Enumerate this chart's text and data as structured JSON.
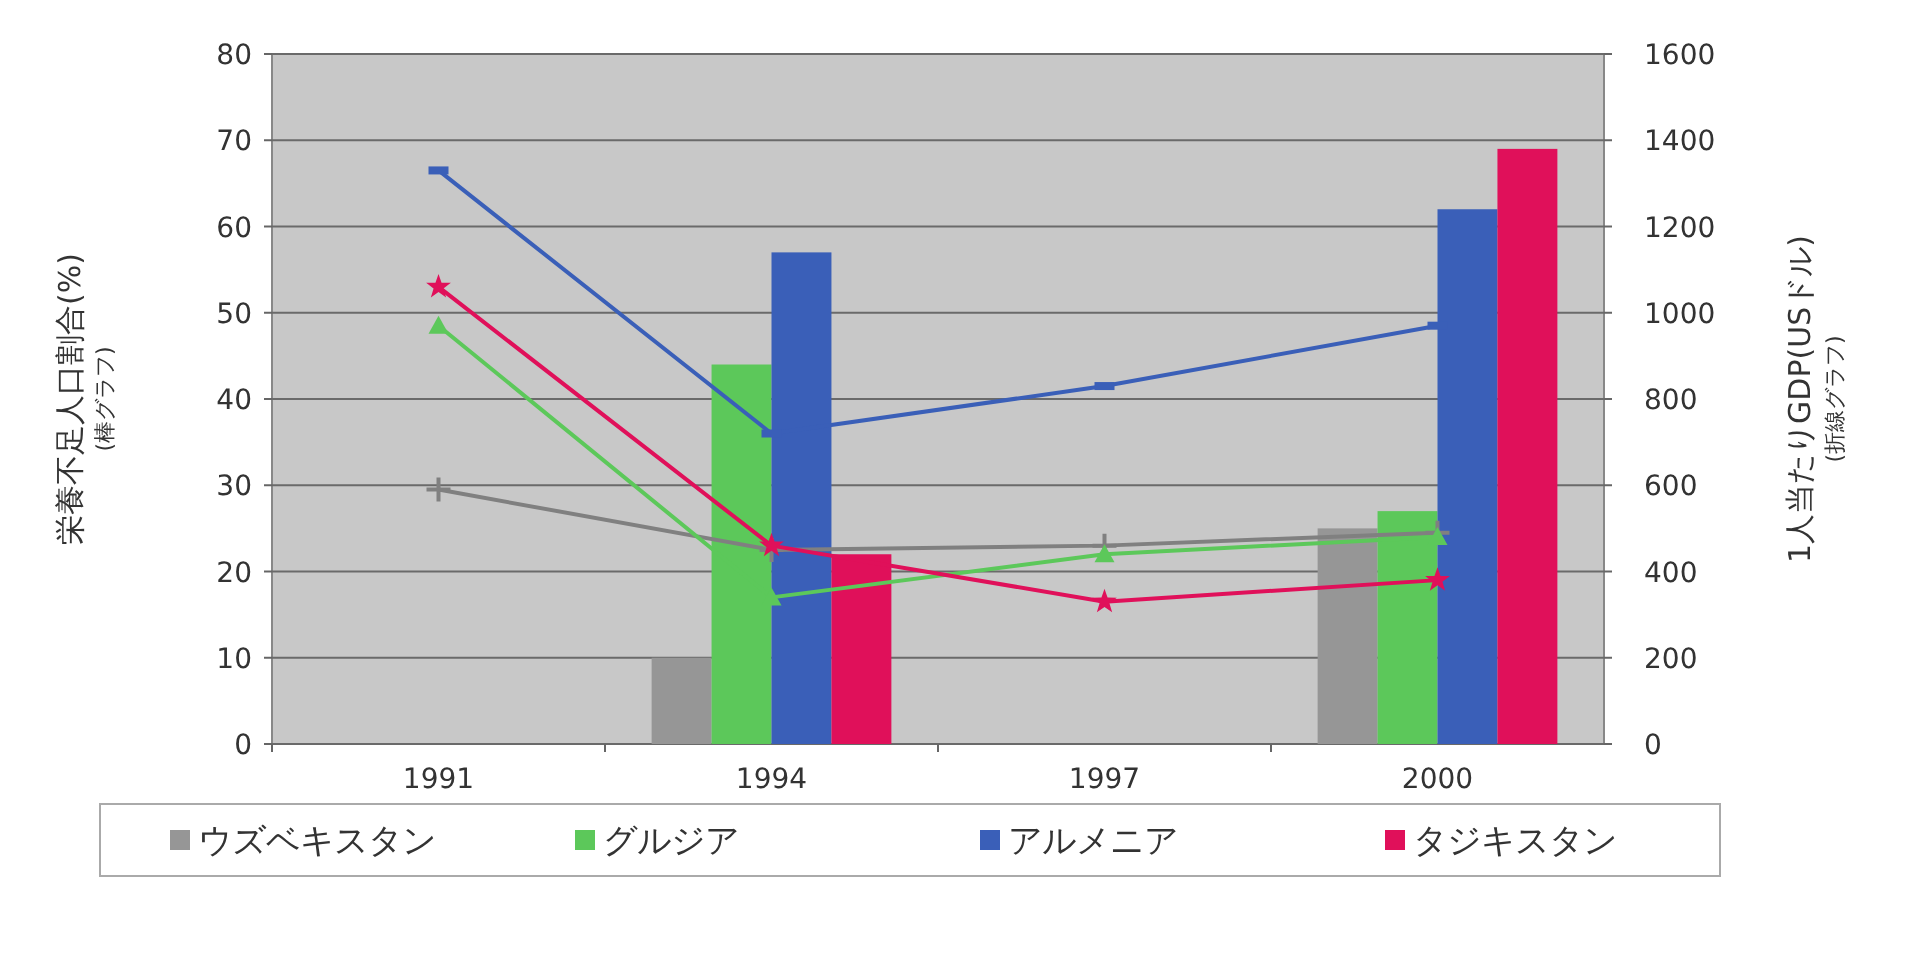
{
  "chart_data": {
    "type": "bar",
    "categories": [
      "1991",
      "1994",
      "1997",
      "2000"
    ],
    "ylabel": "栄養不足人口割合(%)$_{(棒グラフ)}$",
    "y2label": "1人当たりGDP(USドル)$_{(折線グラフ)}$",
    "ylim": [
      0,
      80
    ],
    "yticks": [
      0,
      10,
      20,
      30,
      40,
      50,
      60,
      70,
      80
    ],
    "y2lim": [
      0,
      1600
    ],
    "y2ticks": [
      0,
      200,
      400,
      600,
      800,
      1000,
      1200,
      1400,
      1600
    ],
    "grid": "y",
    "legend": "bottom",
    "series": [
      {
        "name": "ウズベキスタン",
        "color": "#969696",
        "values": [
          null,
          10,
          null,
          25
        ]
      },
      {
        "name": "グルジア",
        "color": "#5cc85a",
        "values": [
          null,
          44,
          null,
          27
        ]
      },
      {
        "name": "アルメニア",
        "color": "#3a5fb8",
        "values": [
          null,
          57,
          null,
          62
        ]
      },
      {
        "name": "タジキスタン",
        "color": "#e0105a",
        "values": [
          null,
          22,
          null,
          69
        ]
      },
      {
        "type": "line",
        "axis": "y2",
        "color": "#808080",
        "marker": "cross",
        "values": [
          590,
          450,
          460,
          490
        ]
      },
      {
        "type": "line",
        "axis": "y2",
        "color": "#5cc85a",
        "marker": "triangle",
        "values": [
          970,
          340,
          440,
          480
        ]
      },
      {
        "type": "line",
        "axis": "y2",
        "color": "#3a5fb8",
        "marker": "square",
        "values": [
          1330,
          720,
          830,
          970
        ]
      },
      {
        "type": "line",
        "axis": "y2",
        "color": "#e0105a",
        "marker": "star",
        "values": [
          1060,
          460,
          330,
          380
        ]
      }
    ]
  }
}
